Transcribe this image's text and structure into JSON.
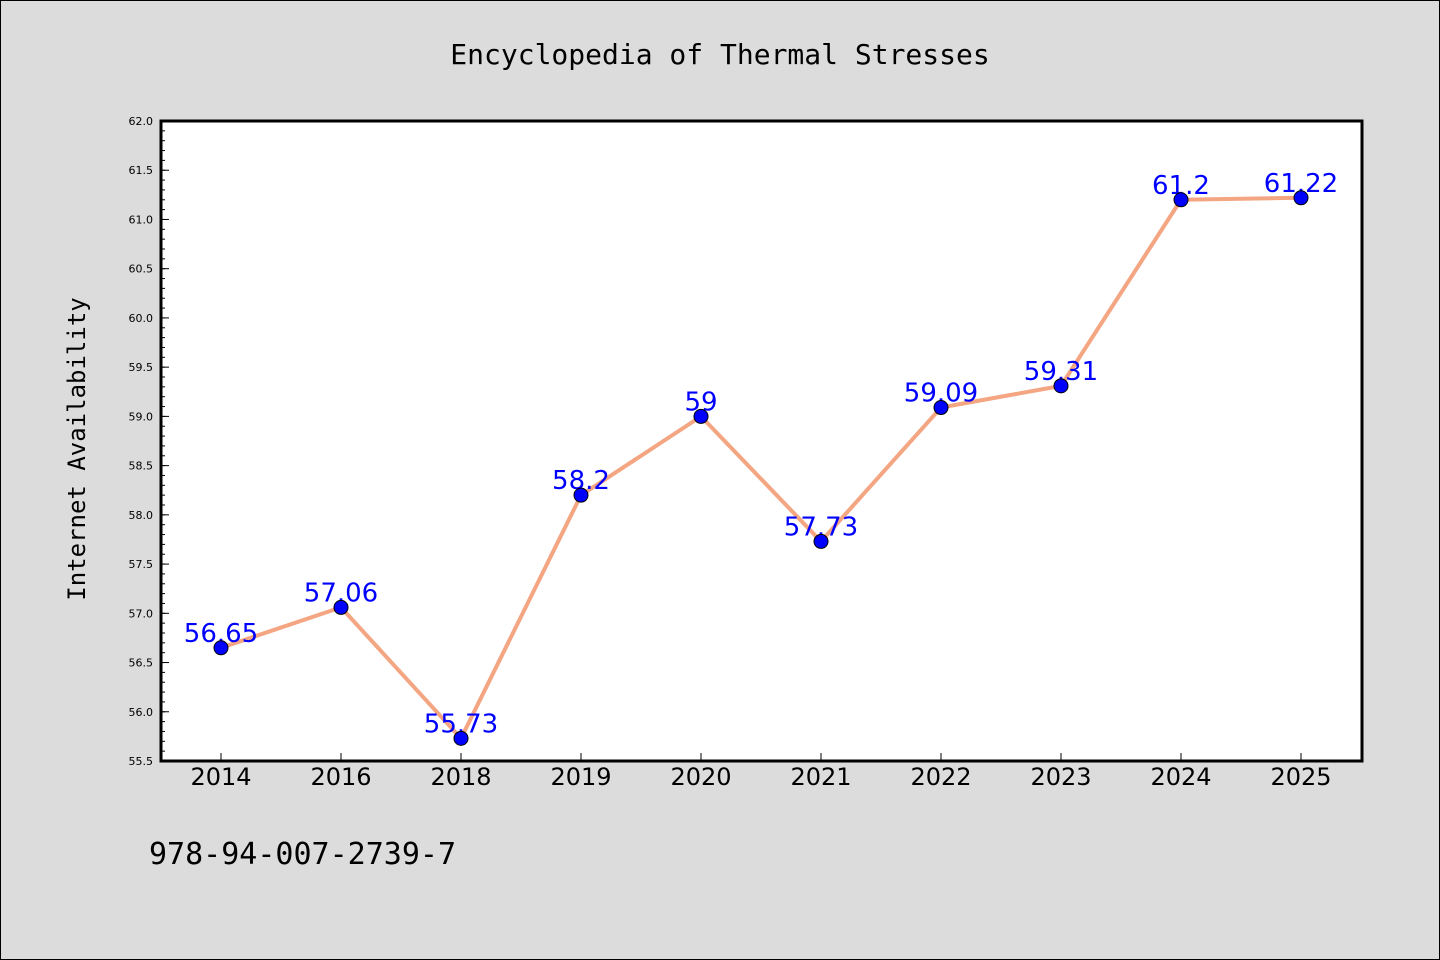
{
  "chart_data": {
    "type": "line",
    "title": "Encyclopedia of Thermal Stresses",
    "xlabel": "",
    "ylabel": "Internet Availability",
    "categories": [
      "2014",
      "2016",
      "2018",
      "2019",
      "2020",
      "2021",
      "2022",
      "2023",
      "2024",
      "2025"
    ],
    "series": [
      {
        "values": [
          56.65,
          57.06,
          55.73,
          58.2,
          59,
          57.73,
          59.09,
          59.31,
          61.2,
          61.22
        ],
        "labels": [
          "56.65",
          "57.06",
          "55.73",
          "58.2",
          "59",
          "57.73",
          "59.09",
          "59.31",
          "61.2",
          "61.22"
        ],
        "line_color": "#f4a582",
        "marker_color": "#0000ff"
      }
    ],
    "ylim": [
      55.5,
      62.0
    ],
    "yticks": [
      "55.5",
      "56.0",
      "56.5",
      "57.0",
      "57.5",
      "58.0",
      "58.5",
      "59.0",
      "59.5",
      "60.0",
      "60.5",
      "61.0",
      "61.5",
      "62.0"
    ],
    "grid": false,
    "legend": "none",
    "footnote": "978-94-007-2739-7",
    "background_color": "#dcdcdc",
    "plot_background": "#ffffff",
    "label_color": "#0000ff"
  }
}
